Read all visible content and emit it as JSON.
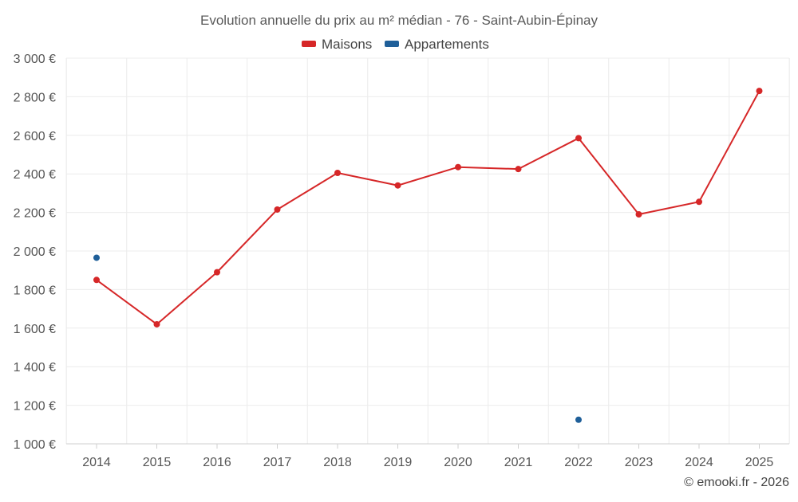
{
  "chart_data": {
    "type": "line",
    "title": "Evolution annuelle du prix au m² médian - 76 - Saint-Aubin-Épinay",
    "x": [
      "2014",
      "2015",
      "2016",
      "2017",
      "2018",
      "2019",
      "2020",
      "2021",
      "2022",
      "2023",
      "2024",
      "2025"
    ],
    "ylim": [
      1000,
      3000
    ],
    "yticks": [
      1000,
      1200,
      1400,
      1600,
      1800,
      2000,
      2200,
      2400,
      2600,
      2800,
      3000
    ],
    "ytick_labels": [
      "1 000 €",
      "1 200 €",
      "1 400 €",
      "1 600 €",
      "1 800 €",
      "2 000 €",
      "2 200 €",
      "2 400 €",
      "2 600 €",
      "2 800 €",
      "3 000 €"
    ],
    "grid": true,
    "legend_position": "top-center",
    "series": [
      {
        "name": "Maisons",
        "color": "#d62728",
        "values": [
          1850,
          1620,
          1890,
          2215,
          2405,
          2340,
          2435,
          2425,
          2585,
          2190,
          2255,
          2830
        ]
      },
      {
        "name": "Appartements",
        "color": "#1f5f99",
        "values": [
          1965,
          null,
          null,
          null,
          null,
          null,
          null,
          null,
          1125,
          null,
          null,
          null
        ]
      }
    ]
  },
  "credit": "© emooki.fr - 2026"
}
